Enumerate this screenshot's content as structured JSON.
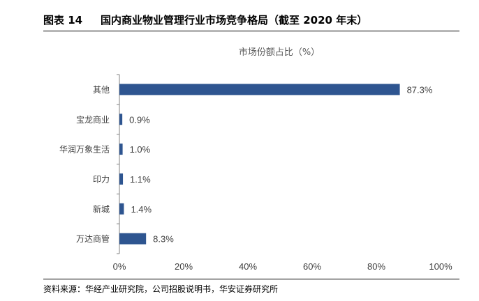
{
  "figure": {
    "label": "图表 14",
    "title": "国内商业物业管理行业市场竞争格局（截至 2020 年末）",
    "source": "资料来源：华经产业研究院，公司招股说明书，华安证券研究所"
  },
  "chart_data": {
    "type": "bar",
    "orientation": "horizontal",
    "title": "市场份额占比（%）",
    "categories": [
      "其他",
      "宝龙商业",
      "华润万象生活",
      "印力",
      "新城",
      "万达商管"
    ],
    "values": [
      87.3,
      0.9,
      1.0,
      1.1,
      1.4,
      8.3
    ],
    "value_labels": [
      "87.3%",
      "0.9%",
      "1.0%",
      "1.1%",
      "1.4%",
      "8.3%"
    ],
    "xlim": [
      0,
      100
    ],
    "x_ticks": [
      0,
      20,
      40,
      60,
      80,
      100
    ],
    "x_tick_labels": [
      "0%",
      "20%",
      "40%",
      "60%",
      "80%",
      "100%"
    ],
    "grid": false,
    "colors": {
      "bar": "#2E5590",
      "axis": "#808080",
      "text": "#404040"
    }
  }
}
